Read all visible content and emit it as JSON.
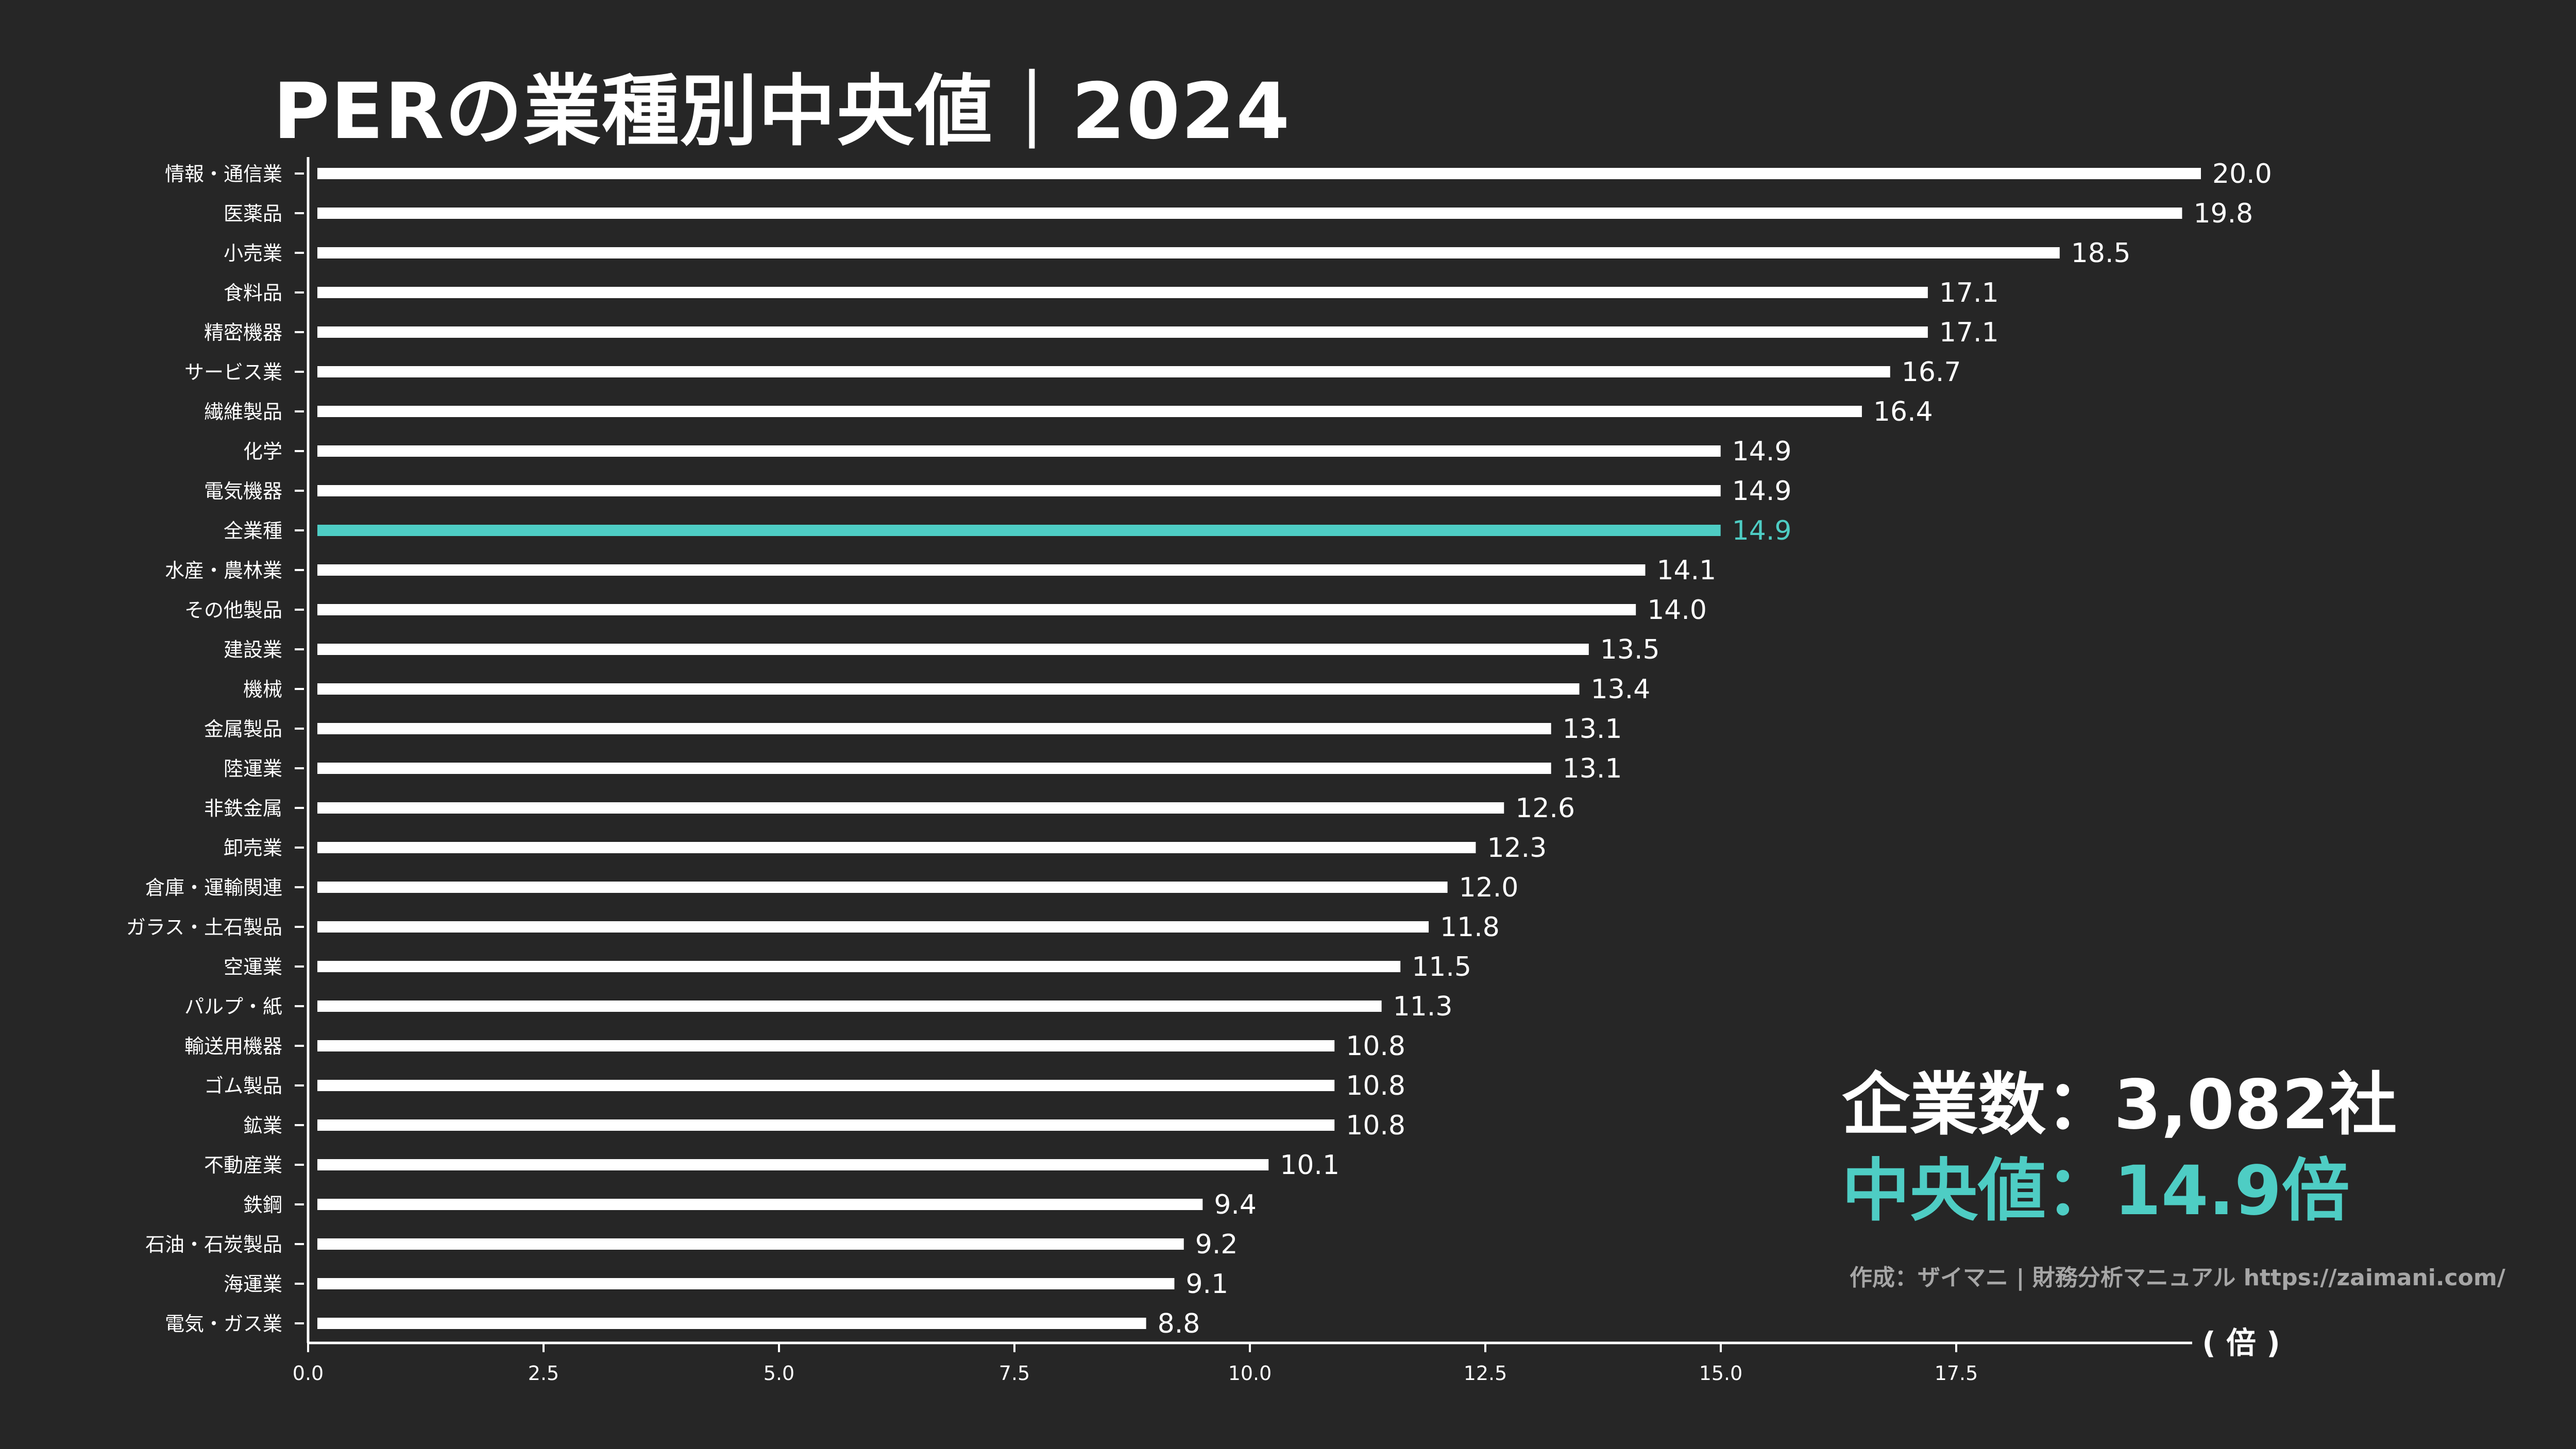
{
  "title": "PERの業種別中央値｜2024",
  "stats": {
    "companies_label": "企業数：",
    "companies_value": "3,082社",
    "median_label": "中央値：",
    "median_value": "14.9倍"
  },
  "credit": "作成：ザイマニ | 財務分析マニュアル https://zaimani.com/",
  "colors": {
    "bar": "#ffffff",
    "highlight": "#4ecdc4",
    "background": "#262626",
    "axis": "#ffffff"
  },
  "chart_data": {
    "type": "bar",
    "orientation": "horizontal",
    "unit_label": "( 倍 )",
    "xlim": [
      0,
      20
    ],
    "xticks": [
      "0.0",
      "2.5",
      "5.0",
      "7.5",
      "10.0",
      "12.5",
      "15.0",
      "17.5"
    ],
    "highlight_category": "全業種",
    "categories": [
      "情報・通信業",
      "医薬品",
      "小売業",
      "食料品",
      "精密機器",
      "サービス業",
      "繊維製品",
      "化学",
      "電気機器",
      "全業種",
      "水産・農林業",
      "その他製品",
      "建設業",
      "機械",
      "金属製品",
      "陸運業",
      "非鉄金属",
      "卸売業",
      "倉庫・運輸関連",
      "ガラス・土石製品",
      "空運業",
      "パルプ・紙",
      "輸送用機器",
      "ゴム製品",
      "鉱業",
      "不動産業",
      "鉄鋼",
      "石油・石炭製品",
      "海運業",
      "電気・ガス業"
    ],
    "values": [
      20.0,
      19.8,
      18.5,
      17.1,
      17.1,
      16.7,
      16.4,
      14.9,
      14.9,
      14.9,
      14.1,
      14.0,
      13.5,
      13.4,
      13.1,
      13.1,
      12.6,
      12.3,
      12.0,
      11.8,
      11.5,
      11.3,
      10.8,
      10.8,
      10.8,
      10.1,
      9.4,
      9.2,
      9.1,
      8.8
    ],
    "value_labels": [
      "20.0",
      "19.8",
      "18.5",
      "17.1",
      "17.1",
      "16.7",
      "16.4",
      "14.9",
      "14.9",
      "14.9",
      "14.1",
      "14.0",
      "13.5",
      "13.4",
      "13.1",
      "13.1",
      "12.6",
      "12.3",
      "12.0",
      "11.8",
      "11.5",
      "11.3",
      "10.8",
      "10.8",
      "10.8",
      "10.1",
      "9.4",
      "9.2",
      "9.1",
      "8.8"
    ]
  }
}
